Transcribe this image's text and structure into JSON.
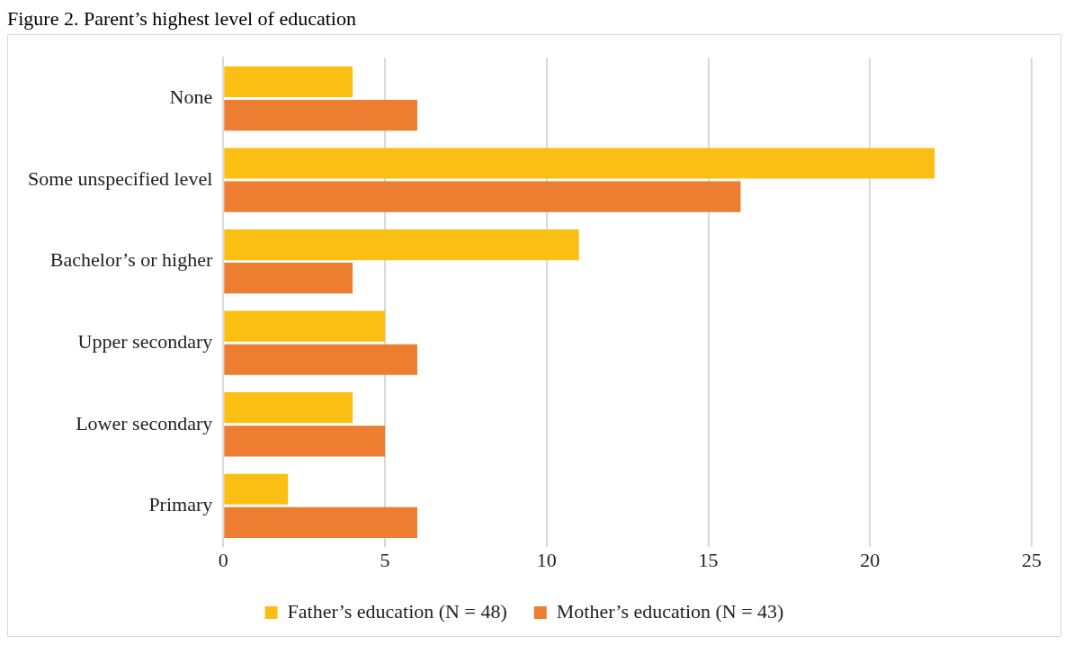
{
  "chart_data": {
    "type": "bar",
    "title": "Figure 2. Parent’s highest level of education",
    "orientation": "horizontal",
    "categories": [
      "None",
      "Some unspecified level",
      "Bachelor’s or higher",
      "Upper secondary",
      "Lower secondary",
      "Primary"
    ],
    "series": [
      {
        "name": "Father’s education (N = 48)",
        "color": "#fbbf14",
        "values": [
          4,
          22,
          11,
          5,
          4,
          2
        ]
      },
      {
        "name": "Mother’s education (N = 43)",
        "color": "#ed7d31",
        "values": [
          6,
          16,
          4,
          6,
          5,
          6
        ]
      }
    ],
    "xlim": [
      0,
      25
    ],
    "xticks": [
      0,
      5,
      10,
      15,
      20,
      25
    ],
    "grid": "x",
    "legend": "bottom"
  }
}
